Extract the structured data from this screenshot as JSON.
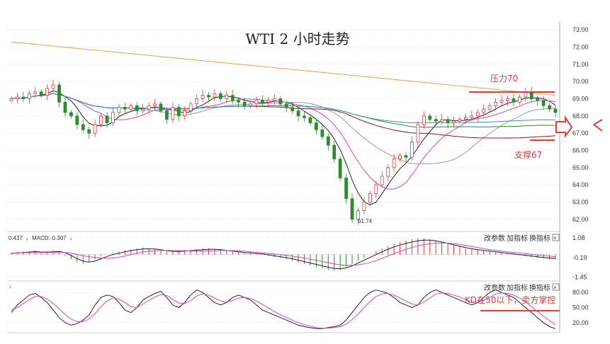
{
  "chart_data": {
    "type": "candlestick",
    "title": "WTI 2 小时走势",
    "price_axis": {
      "ticks": [
        "73.00",
        "72.00",
        "71.00",
        "70.00",
        "69.00",
        "68.00",
        "67.00",
        "66.00",
        "65.00",
        "64.00",
        "63.00",
        "62.00"
      ],
      "range": [
        61.5,
        73.5
      ]
    },
    "macd_axis": {
      "ticks": [
        "1.08",
        "-0.19",
        "-1.45"
      ],
      "range": [
        -1.7,
        1.4
      ]
    },
    "kd_axis": {
      "ticks": [
        "80.00",
        "50.00",
        "20.00"
      ],
      "range": [
        0,
        100
      ]
    },
    "macd_header": {
      "dif_fragment": "0.437",
      "macd_label": "MACD:-0.307"
    },
    "pane_buttons": [
      "改参数",
      "加指标",
      "换指标"
    ],
    "close_glyph": "×",
    "annotations": {
      "resistance": {
        "label": "压力70",
        "value": 70
      },
      "support": {
        "label": "支撑67",
        "value": 67
      },
      "low": {
        "label": "61.74",
        "value": 61.74
      },
      "kd_note": {
        "label": "KD在50以下，卖方掌控",
        "value": 50
      }
    },
    "closes": [
      69.0,
      69.1,
      69.0,
      69.3,
      69.4,
      69.2,
      69.6,
      69.8,
      68.8,
      68.2,
      68.0,
      67.5,
      67.2,
      67.0,
      67.5,
      68.0,
      67.6,
      68.2,
      68.5,
      68.4,
      68.6,
      68.3,
      68.4,
      68.6,
      68.7,
      68.3,
      67.8,
      68.5,
      68.0,
      68.3,
      68.7,
      69.0,
      69.2,
      69.1,
      69.3,
      69.0,
      69.2,
      68.9,
      68.8,
      68.6,
      68.7,
      68.9,
      68.8,
      68.9,
      69.0,
      68.7,
      68.5,
      68.3,
      68.0,
      67.9,
      67.6,
      67.2,
      66.8,
      66.3,
      65.5,
      64.4,
      63.2,
      62.0,
      62.5,
      63.0,
      63.5,
      64.0,
      64.5,
      65.0,
      65.5,
      65.7,
      65.6,
      66.5,
      67.5,
      68.0,
      67.8,
      67.7,
      67.8,
      67.6,
      67.7,
      67.8,
      67.9,
      68.0,
      68.2,
      68.4,
      68.6,
      68.8,
      68.9,
      69.0,
      68.8,
      69.1,
      69.4,
      69.0,
      68.9,
      68.6,
      68.4,
      68.2
    ],
    "macd_hist": [
      0.1,
      0.15,
      0.2,
      0.2,
      0.25,
      0.1,
      0.2,
      0.3,
      0.2,
      -0.1,
      -0.3,
      -0.5,
      -0.6,
      -0.5,
      -0.3,
      -0.1,
      0.0,
      0.1,
      0.2,
      0.3,
      0.35,
      0.4,
      0.45,
      0.4,
      0.35,
      0.3,
      0.2,
      0.2,
      0.25,
      0.3,
      0.3,
      0.35,
      0.4,
      0.4,
      0.35,
      0.3,
      0.25,
      0.2,
      0.15,
      0.1,
      0.1,
      0.05,
      0.0,
      -0.1,
      -0.15,
      -0.2,
      -0.3,
      -0.4,
      -0.5,
      -0.6,
      -0.7,
      -0.8,
      -0.9,
      -1.0,
      -1.05,
      -1.0,
      -0.8,
      -0.6,
      -0.4,
      -0.2,
      0.0,
      0.2,
      0.4,
      0.55,
      0.7,
      0.8,
      0.9,
      1.0,
      1.05,
      1.05,
      1.0,
      0.9,
      0.8,
      0.7,
      0.6,
      0.5,
      0.4,
      0.35,
      0.3,
      0.25,
      0.2,
      0.15,
      0.1,
      0.05,
      0.0,
      -0.05,
      -0.1,
      -0.15,
      -0.2,
      -0.25,
      -0.28,
      -0.3
    ],
    "kd_k": [
      40,
      55,
      65,
      75,
      78,
      70,
      60,
      45,
      30,
      20,
      15,
      18,
      25,
      35,
      55,
      70,
      75,
      72,
      60,
      45,
      40,
      50,
      65,
      72,
      78,
      82,
      70,
      55,
      50,
      60,
      75,
      85,
      80,
      70,
      60,
      55,
      60,
      70,
      75,
      70,
      65,
      55,
      45,
      40,
      35,
      30,
      25,
      20,
      15,
      12,
      10,
      8,
      8,
      10,
      12,
      15,
      25,
      40,
      55,
      70,
      80,
      85,
      82,
      78,
      70,
      60,
      55,
      50,
      55,
      70,
      80,
      85,
      80,
      75,
      70,
      65,
      60,
      55,
      60,
      70,
      80,
      85,
      80,
      75,
      70,
      60,
      50,
      40,
      30,
      20,
      12,
      8
    ],
    "kd_d": [
      45,
      50,
      58,
      66,
      72,
      72,
      67,
      58,
      47,
      36,
      27,
      22,
      22,
      27,
      38,
      52,
      63,
      69,
      67,
      60,
      52,
      50,
      57,
      64,
      71,
      76,
      74,
      66,
      59,
      58,
      64,
      73,
      77,
      75,
      69,
      63,
      61,
      64,
      69,
      70,
      68,
      63,
      56,
      49,
      42,
      36,
      30,
      25,
      20,
      16,
      13,
      10,
      9,
      9,
      10,
      12,
      17,
      26,
      37,
      50,
      62,
      72,
      77,
      78,
      75,
      69,
      63,
      57,
      55,
      61,
      69,
      77,
      79,
      78,
      75,
      71,
      66,
      61,
      60,
      64,
      70,
      77,
      79,
      78,
      75,
      69,
      61,
      52,
      42,
      33,
      24,
      16
    ]
  }
}
